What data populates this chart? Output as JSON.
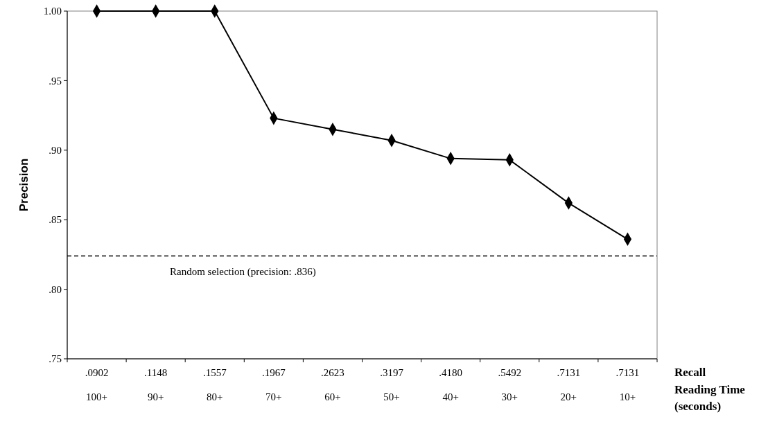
{
  "chart_data": {
    "type": "line",
    "ylabel": "Precision",
    "xlabel": "Reading Time (seconds)",
    "categories": [
      "100+",
      "90+",
      "80+",
      "70+",
      "60+",
      "50+",
      "40+",
      "30+",
      "20+",
      "10+"
    ],
    "series": [
      {
        "color": "#000000",
        "values": [
          1.0,
          1.0,
          1.0,
          0.923,
          0.915,
          0.907,
          0.894,
          0.893,
          0.862,
          0.836
        ]
      }
    ],
    "ylim": [
      0.75,
      1.0
    ],
    "yticks": [
      {
        "value": 0.75,
        "label": ".75"
      },
      {
        "value": 0.8,
        "label": ".80"
      },
      {
        "value": 0.85,
        "label": ".85"
      },
      {
        "value": 0.9,
        "label": ".90"
      },
      {
        "value": 0.95,
        "label": ".95"
      },
      {
        "value": 1.0,
        "label": "1.00"
      }
    ],
    "marker": "diamond",
    "line_style": "solid",
    "grid": false,
    "ref_lines": [
      {
        "axis": "y",
        "value": 0.824,
        "label": "Random selection (precision: .836)",
        "line_style": "dashed",
        "color": "#000000"
      }
    ],
    "annotations": [
      ".0902",
      ".1148",
      ".1557",
      ".1967",
      ".2623",
      ".3197",
      ".4180",
      ".5492",
      ".7131",
      ".7131",
      "Recall"
    ]
  }
}
